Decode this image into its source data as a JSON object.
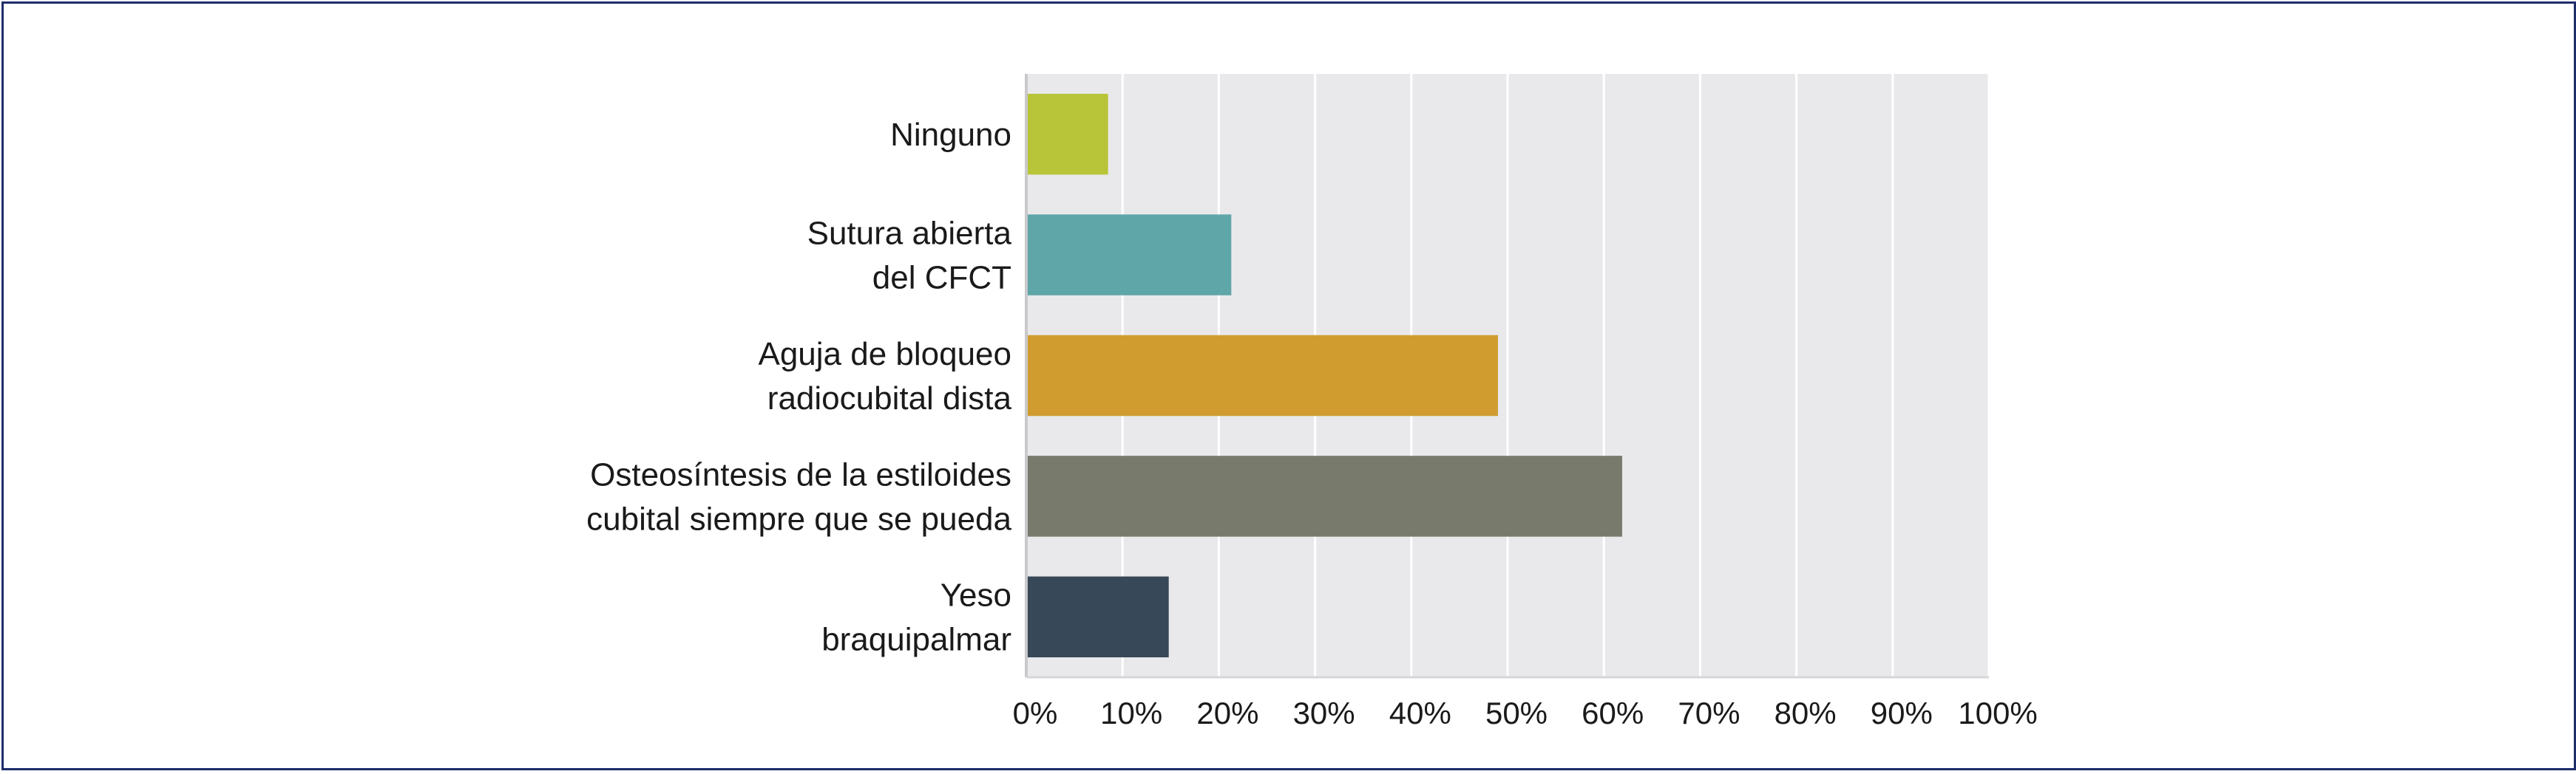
{
  "chart_data": {
    "type": "bar",
    "orientation": "horizontal",
    "categories": [
      [
        "Ninguno"
      ],
      [
        "Sutura abierta",
        "del CFCT"
      ],
      [
        "Aguja de bloqueo",
        "radiocubital dista"
      ],
      [
        "Osteosíntesis de la estiloides",
        "cubital siempre que se pueda"
      ],
      [
        "Yeso",
        "braquipalmar"
      ]
    ],
    "values": [
      8.5,
      21.3,
      49.0,
      61.9,
      14.8
    ],
    "colors": [
      "#b9c539",
      "#5fa6a8",
      "#d09c30",
      "#787a6c",
      "#374858"
    ],
    "xlim": [
      0,
      100
    ],
    "xticks": [
      0,
      10,
      20,
      30,
      40,
      50,
      60,
      70,
      80,
      90,
      100
    ],
    "xtick_labels": [
      "0%",
      "10%",
      "20%",
      "30%",
      "40%",
      "50%",
      "60%",
      "70%",
      "80%",
      "90%",
      "100%"
    ],
    "grid": true,
    "plot_background": "#e9e9ec",
    "grid_color": "#ffffff",
    "title": "",
    "xlabel": "",
    "ylabel": ""
  }
}
